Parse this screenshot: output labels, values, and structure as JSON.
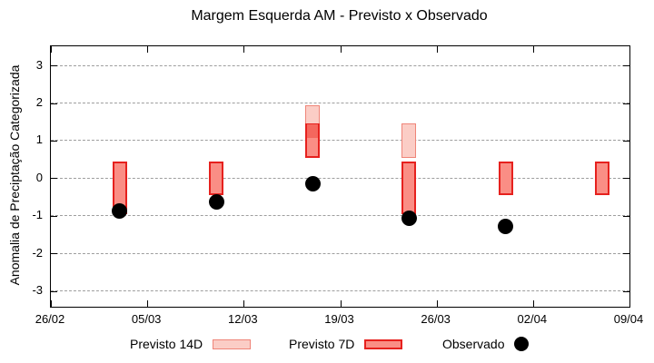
{
  "title": "Margem Esquerda AM - Previsto x Observado",
  "colors": {
    "p14_fill": "#fbcdc6",
    "p14_border": "#ef8478",
    "p7_fill": "#fa8e85",
    "p7_border": "#e6211e",
    "overlap_fill": "#f4675e",
    "observed": "#000000",
    "grid": "#9e9e9e",
    "axis": "#000000"
  },
  "legend": {
    "p14_label": "Previsto 14D",
    "p7_label": "Previsto 7D",
    "obs_label": "Observado"
  },
  "chart_data": {
    "type": "bar",
    "subtype": "forecast-range-boxes-with-observed-points",
    "title": "Margem Esquerda AM - Previsto x Observado",
    "xlabel": "",
    "ylabel": "Anomalia de Preciptação Categorizada",
    "ylim": [
      -3.42,
      3.51
    ],
    "yticks": [
      -3,
      -2,
      -1,
      0,
      1,
      2,
      3
    ],
    "grid": true,
    "xlim_days": [
      0,
      42
    ],
    "xtick_days": [
      0,
      7,
      14,
      21,
      28,
      35,
      42
    ],
    "xtick_labels": [
      "26/02",
      "05/03",
      "12/03",
      "19/03",
      "26/03",
      "02/04",
      "09/04"
    ],
    "legend_position": "below-plot",
    "series_names": [
      "Previsto 14D",
      "Previsto 7D",
      "Observado"
    ],
    "points": [
      {
        "date": "03/03",
        "day": 5,
        "previsto_14d": null,
        "previsto_7d": [
          -0.95,
          0.45
        ],
        "observado": -0.88
      },
      {
        "date": "10/03",
        "day": 12,
        "previsto_14d": null,
        "previsto_7d": [
          -0.45,
          0.45
        ],
        "observado": -0.62
      },
      {
        "date": "17/03",
        "day": 19,
        "previsto_14d": [
          1.05,
          1.95
        ],
        "previsto_7d": [
          0.55,
          1.45
        ],
        "observado": -0.14
      },
      {
        "date": "24/03",
        "day": 26,
        "previsto_14d": [
          0.55,
          1.45
        ],
        "previsto_7d": [
          -0.95,
          0.45
        ],
        "observado": -1.07
      },
      {
        "date": "31/03",
        "day": 33,
        "previsto_14d": null,
        "previsto_7d": [
          -0.45,
          0.45
        ],
        "observado": -1.28
      },
      {
        "date": "07/04",
        "day": 40,
        "previsto_14d": null,
        "previsto_7d": [
          -0.45,
          0.45
        ],
        "observado": null
      }
    ]
  }
}
